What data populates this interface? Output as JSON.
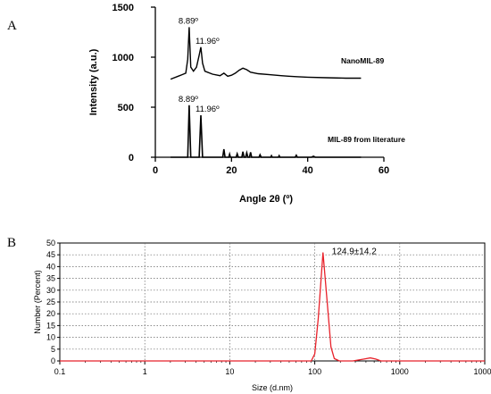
{
  "chart_data": [
    {
      "type": "line",
      "panel": "A",
      "xlabel": "Angle 2θ (º)",
      "ylabel": "Intensity (a.u.)",
      "xlim": [
        0,
        60
      ],
      "ylim": [
        0,
        1500
      ],
      "xticks": [
        0,
        20,
        40,
        60
      ],
      "yticks": [
        0,
        500,
        1000,
        1500
      ],
      "series": [
        {
          "name": "NanoMIL-89",
          "offset": 780,
          "x": [
            4,
            6,
            7,
            8,
            8.5,
            8.89,
            9.3,
            10,
            10.8,
            11.5,
            11.96,
            12.4,
            13,
            15,
            17,
            18,
            19,
            20,
            21,
            22,
            23,
            24,
            25,
            27,
            30,
            33,
            35,
            37,
            40,
            45,
            50,
            54
          ],
          "y": [
            0,
            30,
            45,
            60,
            200,
            520,
            120,
            80,
            120,
            240,
            320,
            160,
            80,
            50,
            35,
            60,
            30,
            40,
            60,
            90,
            110,
            95,
            70,
            55,
            45,
            35,
            30,
            25,
            20,
            15,
            10,
            10
          ],
          "peaks": [
            {
              "x": 8.89,
              "label": "8.89º"
            },
            {
              "x": 11.96,
              "label": "11.96º"
            }
          ]
        },
        {
          "name": "MIL-89 from literature",
          "offset": 0,
          "x": [
            4,
            8.5,
            8.89,
            9.3,
            11.5,
            11.96,
            12.4,
            17.7,
            18,
            18.3,
            19.3,
            19.5,
            19.7,
            21.2,
            21.5,
            21.8,
            22.7,
            23,
            23.3,
            23.7,
            24,
            24.3,
            24.7,
            25,
            25.3,
            27.2,
            27.5,
            27.8,
            30.3,
            30.5,
            30.7,
            32.3,
            32.5,
            32.7,
            36.7,
            37,
            37.3,
            41,
            41.5,
            42,
            45,
            54
          ],
          "y": [
            0,
            0,
            520,
            0,
            0,
            420,
            0,
            0,
            80,
            0,
            0,
            30,
            0,
            0,
            35,
            0,
            0,
            55,
            0,
            0,
            45,
            0,
            0,
            50,
            0,
            0,
            25,
            0,
            0,
            15,
            0,
            0,
            15,
            0,
            0,
            20,
            0,
            0,
            10,
            0,
            0,
            0
          ],
          "peaks": [
            {
              "x": 8.89,
              "label": "8.89º"
            },
            {
              "x": 11.96,
              "label": "11.96º"
            }
          ]
        }
      ],
      "color": "#000000"
    },
    {
      "type": "line",
      "panel": "B",
      "xlabel": "Size (d.nm)",
      "ylabel": "Number (Percent)",
      "xscale": "log",
      "xlim": [
        0.1,
        10000
      ],
      "ylim": [
        0,
        50
      ],
      "xticks": [
        0.1,
        1,
        10,
        100,
        1000,
        10000
      ],
      "xticklabels": [
        "0.1",
        "1",
        "10",
        "100",
        "1000",
        "10000"
      ],
      "yticks": [
        0,
        5,
        10,
        15,
        20,
        25,
        30,
        35,
        40,
        45,
        50
      ],
      "grid": true,
      "annotation": "124.9±14.2",
      "series": [
        {
          "x": [
            0.1,
            80,
            91,
            100,
            110,
            124.9,
            140,
            155,
            170,
            195,
            280,
            380,
            450,
            520,
            600,
            10000
          ],
          "y": [
            0,
            0,
            0,
            3,
            18,
            46,
            25,
            6,
            1,
            0,
            0,
            0.8,
            1.3,
            0.8,
            0,
            0
          ]
        }
      ],
      "color": "#e8212a"
    }
  ]
}
